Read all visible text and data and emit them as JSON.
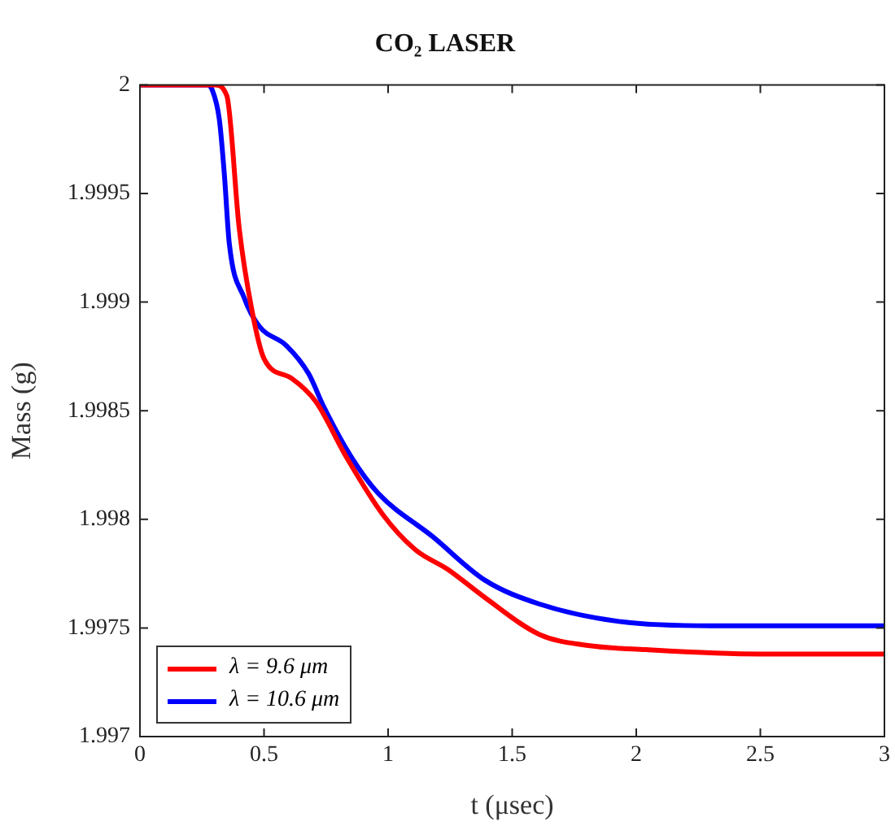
{
  "chart_data": {
    "type": "line",
    "title": "CO₂ LASER",
    "xlabel": "t (μsec)",
    "ylabel": "Mass (g)",
    "xlim": [
      0,
      3
    ],
    "xticks": [
      0,
      0.5,
      1,
      1.5,
      2,
      2.5,
      3
    ],
    "ylim": [
      1.997,
      2
    ],
    "yticks": [
      {
        "value": 1.997,
        "label": "1.997"
      },
      {
        "value": 1.9975,
        "label": "1.9975"
      },
      {
        "value": 1.998,
        "label": "1.998"
      },
      {
        "value": 1.9985,
        "label": "1.9985"
      },
      {
        "value": 1.999,
        "label": "1.999"
      },
      {
        "value": 1.9995,
        "label": "1.9995"
      },
      {
        "value": 2,
        "label": "2"
      }
    ],
    "legend": "bottom left",
    "marker": "none",
    "line_style": "solid",
    "series": [
      {
        "name": "λ = 9.6 μm",
        "color": "#ff0000",
        "x": [
          0,
          0.3,
          0.35,
          0.4,
          0.45,
          0.5,
          0.61,
          0.71,
          0.83,
          0.98,
          1.11,
          1.24,
          1.39,
          1.61,
          1.8,
          2.04,
          2.5,
          3
        ],
        "values": [
          2,
          2,
          1.99995,
          1.99934,
          1.99897,
          1.99874,
          1.99865,
          1.99854,
          1.99829,
          1.99802,
          1.99786,
          1.99777,
          1.99764,
          1.99747,
          1.99742,
          1.9974,
          1.99738,
          1.99738
        ]
      },
      {
        "name": "λ = 10.6 μm",
        "color": "#0000ff",
        "x": [
          0,
          0.27,
          0.29,
          0.32,
          0.34,
          0.36,
          0.42,
          0.48,
          0.59,
          0.68,
          0.74,
          0.85,
          0.96,
          1.18,
          1.39,
          1.61,
          1.93,
          2.3,
          3
        ],
        "values": [
          2,
          2,
          1.99998,
          1.99984,
          1.99959,
          1.99927,
          1.99902,
          1.99889,
          1.9988,
          1.99867,
          1.99852,
          1.99829,
          1.99812,
          1.99792,
          1.99772,
          1.99761,
          1.99753,
          1.99751,
          1.99751
        ]
      }
    ]
  }
}
